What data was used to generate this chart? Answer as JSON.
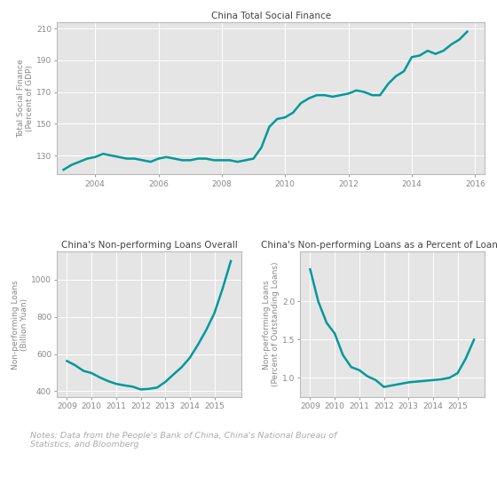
{
  "chart1": {
    "title": "China Total Social Finance",
    "ylabel": "Total Social Finance\n(Percent of GDP)",
    "x": [
      2003.0,
      2003.25,
      2003.5,
      2003.75,
      2004.0,
      2004.25,
      2004.5,
      2004.75,
      2005.0,
      2005.25,
      2005.5,
      2005.75,
      2006.0,
      2006.25,
      2006.5,
      2006.75,
      2007.0,
      2007.25,
      2007.5,
      2007.75,
      2008.0,
      2008.25,
      2008.5,
      2008.75,
      2009.0,
      2009.25,
      2009.5,
      2009.75,
      2010.0,
      2010.25,
      2010.5,
      2010.75,
      2011.0,
      2011.25,
      2011.5,
      2011.75,
      2012.0,
      2012.25,
      2012.5,
      2012.75,
      2013.0,
      2013.25,
      2013.5,
      2013.75,
      2014.0,
      2014.25,
      2014.5,
      2014.75,
      2015.0,
      2015.25,
      2015.5,
      2015.75
    ],
    "y": [
      121,
      124,
      126,
      128,
      129,
      131,
      130,
      129,
      128,
      128,
      127,
      126,
      128,
      129,
      128,
      127,
      127,
      128,
      128,
      127,
      127,
      127,
      126,
      127,
      128,
      135,
      148,
      153,
      154,
      157,
      163,
      166,
      168,
      168,
      167,
      168,
      169,
      171,
      170,
      168,
      168,
      175,
      180,
      183,
      192,
      193,
      196,
      194,
      196,
      200,
      203,
      208
    ],
    "xticks": [
      2004,
      2006,
      2008,
      2010,
      2012,
      2014,
      2016
    ],
    "yticks": [
      130,
      150,
      170,
      190,
      210
    ],
    "ylim": [
      118,
      214
    ],
    "xlim": [
      2002.8,
      2016.3
    ]
  },
  "chart2": {
    "title": "China's Non-performing Loans Overall",
    "ylabel": "Non-performing Loans\n(Billion Yuan)",
    "x": [
      2009.0,
      2009.33,
      2009.67,
      2010.0,
      2010.33,
      2010.67,
      2011.0,
      2011.33,
      2011.67,
      2012.0,
      2012.33,
      2012.67,
      2013.0,
      2013.33,
      2013.67,
      2014.0,
      2014.33,
      2014.67,
      2015.0,
      2015.33,
      2015.67
    ],
    "y": [
      563,
      540,
      510,
      498,
      475,
      455,
      440,
      432,
      425,
      410,
      413,
      420,
      450,
      490,
      530,
      580,
      650,
      730,
      820,
      950,
      1100
    ],
    "xticks": [
      2009,
      2010,
      2011,
      2012,
      2013,
      2014,
      2015
    ],
    "yticks": [
      400,
      600,
      800,
      1000
    ],
    "ylim": [
      370,
      1150
    ],
    "xlim": [
      2008.6,
      2016.1
    ]
  },
  "chart3": {
    "title": "China's Non-performing Loans as a Percent of Loan Book",
    "ylabel": "Non-performing Loans\n(Percent of Outstanding Loans)",
    "x": [
      2009.0,
      2009.33,
      2009.67,
      2010.0,
      2010.33,
      2010.67,
      2011.0,
      2011.33,
      2011.67,
      2012.0,
      2012.33,
      2012.67,
      2013.0,
      2013.33,
      2013.67,
      2014.0,
      2014.33,
      2014.67,
      2015.0,
      2015.33,
      2015.67
    ],
    "y": [
      2.42,
      2.0,
      1.72,
      1.58,
      1.3,
      1.14,
      1.1,
      1.02,
      0.97,
      0.88,
      0.9,
      0.92,
      0.94,
      0.95,
      0.96,
      0.97,
      0.98,
      1.0,
      1.06,
      1.25,
      1.5
    ],
    "xticks": [
      2009,
      2010,
      2011,
      2012,
      2013,
      2014,
      2015
    ],
    "yticks": [
      1.0,
      1.5,
      2.0
    ],
    "ylim": [
      0.75,
      2.65
    ],
    "xlim": [
      2008.6,
      2016.1
    ]
  },
  "line_color": "#009999",
  "line_width": 1.8,
  "bg_color": "#e5e5e5",
  "spine_color": "#bbbbbb",
  "grid_color": "#ffffff",
  "tick_color": "#888888",
  "title_color": "#444444",
  "label_color": "#888888",
  "note_text": "Notes: Data from the People's Bank of China, China's National Bureau of\nStatistics, and Bloomberg",
  "note_color": "#aaaaaa",
  "title_fontsize": 7.5,
  "label_fontsize": 6.5,
  "tick_fontsize": 6.5
}
